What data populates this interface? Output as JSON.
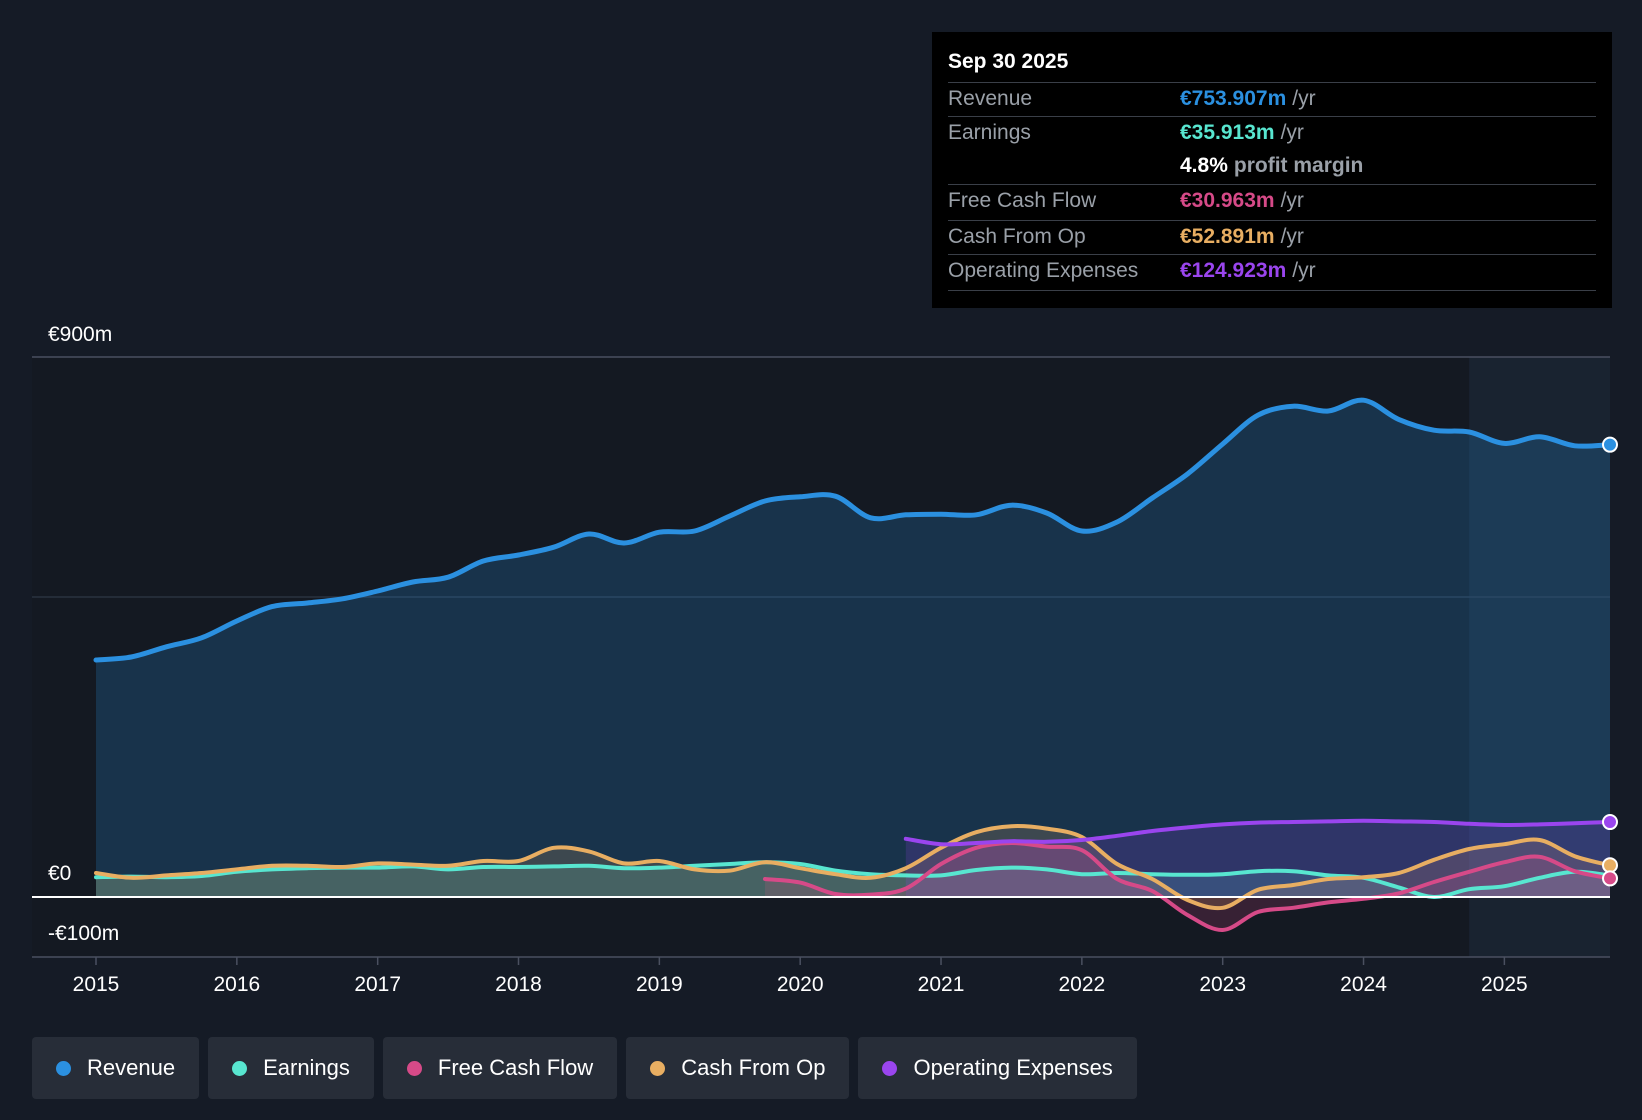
{
  "chart_data": {
    "type": "line",
    "title": "",
    "y_axis": {
      "top_label": "€900m",
      "zero_label": "€0",
      "bottom_label": "-€100m",
      "ylim": [
        -100,
        900
      ],
      "unit": "€m"
    },
    "x_axis": {
      "ticks": [
        "2015",
        "2016",
        "2017",
        "2018",
        "2019",
        "2020",
        "2021",
        "2022",
        "2023",
        "2024",
        "2025"
      ],
      "xlim": [
        2015,
        2025.75
      ]
    },
    "forecast_start": 2024.75,
    "series": [
      {
        "name": "Revenue",
        "color": "#2b90e0",
        "fill": true,
        "points": [
          [
            2015,
            395
          ],
          [
            2015.25,
            400
          ],
          [
            2015.5,
            417
          ],
          [
            2015.75,
            432
          ],
          [
            2016,
            460
          ],
          [
            2016.25,
            484
          ],
          [
            2016.5,
            490
          ],
          [
            2016.75,
            497
          ],
          [
            2017,
            510
          ],
          [
            2017.25,
            525
          ],
          [
            2017.5,
            533
          ],
          [
            2017.75,
            560
          ],
          [
            2018,
            570
          ],
          [
            2018.25,
            583
          ],
          [
            2018.5,
            605
          ],
          [
            2018.75,
            590
          ],
          [
            2019,
            608
          ],
          [
            2019.25,
            610
          ],
          [
            2019.5,
            635
          ],
          [
            2019.75,
            660
          ],
          [
            2020,
            667
          ],
          [
            2020.25,
            668
          ],
          [
            2020.5,
            632
          ],
          [
            2020.75,
            637
          ],
          [
            2021,
            638
          ],
          [
            2021.25,
            637
          ],
          [
            2021.5,
            653
          ],
          [
            2021.75,
            640
          ],
          [
            2022,
            610
          ],
          [
            2022.25,
            625
          ],
          [
            2022.5,
            665
          ],
          [
            2022.75,
            705
          ],
          [
            2023,
            755
          ],
          [
            2023.25,
            803
          ],
          [
            2023.5,
            818
          ],
          [
            2023.75,
            810
          ],
          [
            2024,
            828
          ],
          [
            2024.25,
            796
          ],
          [
            2024.5,
            778
          ],
          [
            2024.75,
            775
          ],
          [
            2025,
            756
          ],
          [
            2025.25,
            767
          ],
          [
            2025.5,
            752
          ],
          [
            2025.75,
            753.907
          ]
        ]
      },
      {
        "name": "Earnings",
        "color": "#58e6d0",
        "fill": true,
        "points": [
          [
            2015,
            33
          ],
          [
            2015.25,
            34
          ],
          [
            2015.5,
            33
          ],
          [
            2015.75,
            35
          ],
          [
            2016,
            42
          ],
          [
            2016.25,
            46
          ],
          [
            2016.5,
            48
          ],
          [
            2016.75,
            49
          ],
          [
            2017,
            49
          ],
          [
            2017.25,
            51
          ],
          [
            2017.5,
            46
          ],
          [
            2017.75,
            50
          ],
          [
            2018,
            50
          ],
          [
            2018.25,
            51
          ],
          [
            2018.5,
            52
          ],
          [
            2018.75,
            48
          ],
          [
            2019,
            49
          ],
          [
            2019.25,
            52
          ],
          [
            2019.5,
            55
          ],
          [
            2019.75,
            58
          ],
          [
            2020,
            55
          ],
          [
            2020.25,
            44
          ],
          [
            2020.5,
            38
          ],
          [
            2020.75,
            36
          ],
          [
            2021,
            36
          ],
          [
            2021.25,
            45
          ],
          [
            2021.5,
            49
          ],
          [
            2021.75,
            46
          ],
          [
            2022,
            38
          ],
          [
            2022.25,
            40
          ],
          [
            2022.5,
            38
          ],
          [
            2022.75,
            37
          ],
          [
            2023,
            38
          ],
          [
            2023.25,
            43
          ],
          [
            2023.5,
            43
          ],
          [
            2023.75,
            36
          ],
          [
            2024,
            32
          ],
          [
            2024.25,
            16
          ],
          [
            2024.5,
            0
          ],
          [
            2024.75,
            13
          ],
          [
            2025,
            18
          ],
          [
            2025.25,
            32
          ],
          [
            2025.5,
            42
          ],
          [
            2025.75,
            35.913
          ]
        ]
      },
      {
        "name": "Free Cash Flow",
        "color": "#d64a88",
        "fill": true,
        "points": [
          [
            2019.75,
            30
          ],
          [
            2020,
            24
          ],
          [
            2020.25,
            5
          ],
          [
            2020.5,
            4
          ],
          [
            2020.75,
            14
          ],
          [
            2021,
            55
          ],
          [
            2021.25,
            82
          ],
          [
            2021.5,
            90
          ],
          [
            2021.75,
            84
          ],
          [
            2022,
            78
          ],
          [
            2022.25,
            30
          ],
          [
            2022.5,
            10
          ],
          [
            2022.75,
            -30
          ],
          [
            2023,
            -55
          ],
          [
            2023.25,
            -25
          ],
          [
            2023.5,
            -18
          ],
          [
            2023.75,
            -9
          ],
          [
            2024,
            -3
          ],
          [
            2024.25,
            6
          ],
          [
            2024.5,
            25
          ],
          [
            2024.75,
            42
          ],
          [
            2025,
            58
          ],
          [
            2025.25,
            67
          ],
          [
            2025.5,
            43
          ],
          [
            2025.75,
            30.963
          ]
        ]
      },
      {
        "name": "Cash From Op",
        "color": "#e8ae62",
        "fill": true,
        "points": [
          [
            2015,
            40
          ],
          [
            2015.25,
            32
          ],
          [
            2015.5,
            36
          ],
          [
            2015.75,
            40
          ],
          [
            2016,
            46
          ],
          [
            2016.25,
            52
          ],
          [
            2016.5,
            52
          ],
          [
            2016.75,
            50
          ],
          [
            2017,
            56
          ],
          [
            2017.25,
            54
          ],
          [
            2017.5,
            52
          ],
          [
            2017.75,
            60
          ],
          [
            2018,
            60
          ],
          [
            2018.25,
            82
          ],
          [
            2018.5,
            76
          ],
          [
            2018.75,
            56
          ],
          [
            2019,
            60
          ],
          [
            2019.25,
            46
          ],
          [
            2019.5,
            44
          ],
          [
            2019.75,
            58
          ],
          [
            2020,
            48
          ],
          [
            2020.25,
            38
          ],
          [
            2020.5,
            32
          ],
          [
            2020.75,
            48
          ],
          [
            2021,
            82
          ],
          [
            2021.25,
            108
          ],
          [
            2021.5,
            118
          ],
          [
            2021.75,
            114
          ],
          [
            2022,
            100
          ],
          [
            2022.25,
            55
          ],
          [
            2022.5,
            30
          ],
          [
            2022.75,
            -5
          ],
          [
            2023,
            -18
          ],
          [
            2023.25,
            12
          ],
          [
            2023.5,
            20
          ],
          [
            2023.75,
            30
          ],
          [
            2024,
            33
          ],
          [
            2024.25,
            40
          ],
          [
            2024.5,
            62
          ],
          [
            2024.75,
            80
          ],
          [
            2025,
            88
          ],
          [
            2025.25,
            95
          ],
          [
            2025.5,
            68
          ],
          [
            2025.75,
            52.891
          ]
        ]
      },
      {
        "name": "Operating Expenses",
        "color": "#9a45ee",
        "fill": true,
        "points": [
          [
            2020.75,
            97
          ],
          [
            2021,
            88
          ],
          [
            2021.25,
            90
          ],
          [
            2021.5,
            93
          ],
          [
            2021.75,
            92
          ],
          [
            2022,
            95
          ],
          [
            2022.25,
            102
          ],
          [
            2022.5,
            110
          ],
          [
            2022.75,
            116
          ],
          [
            2023,
            121
          ],
          [
            2023.25,
            124
          ],
          [
            2023.5,
            125
          ],
          [
            2023.75,
            126
          ],
          [
            2024,
            127
          ],
          [
            2024.25,
            126
          ],
          [
            2024.5,
            125
          ],
          [
            2024.75,
            122
          ],
          [
            2025,
            120
          ],
          [
            2025.25,
            121
          ],
          [
            2025.5,
            123
          ],
          [
            2025.75,
            124.923
          ]
        ]
      }
    ],
    "endpoint_markers": [
      "Revenue",
      "Cash From Op",
      "Free Cash Flow",
      "Operating Expenses"
    ]
  },
  "tooltip": {
    "date": "Sep 30 2025",
    "rows": [
      {
        "label": "Revenue",
        "value": "€753.907m",
        "unit": "/yr",
        "color": "#2b90e0"
      },
      {
        "label": "Earnings",
        "value": "€35.913m",
        "unit": "/yr",
        "color": "#58e6d0"
      },
      {
        "label": "",
        "margin_value": "4.8%",
        "margin_text": "profit margin"
      },
      {
        "label": "Free Cash Flow",
        "value": "€30.963m",
        "unit": "/yr",
        "color": "#d64a88"
      },
      {
        "label": "Cash From Op",
        "value": "€52.891m",
        "unit": "/yr",
        "color": "#e8ae62"
      },
      {
        "label": "Operating Expenses",
        "value": "€124.923m",
        "unit": "/yr",
        "color": "#9a45ee"
      }
    ]
  },
  "legend": [
    {
      "label": "Revenue",
      "color": "#2b90e0"
    },
    {
      "label": "Earnings",
      "color": "#58e6d0"
    },
    {
      "label": "Free Cash Flow",
      "color": "#d64a88"
    },
    {
      "label": "Cash From Op",
      "color": "#e8ae62"
    },
    {
      "label": "Operating Expenses",
      "color": "#9a45ee"
    }
  ]
}
